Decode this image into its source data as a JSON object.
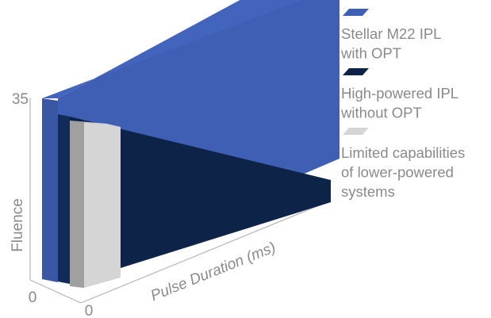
{
  "chart_data": {
    "type": "area",
    "title": "",
    "xlabel": "Pulse Duration (ms)",
    "ylabel": "Fluence",
    "x_ticks": [
      "0"
    ],
    "y_ticks": [
      "0",
      "35"
    ],
    "legend_position": "right",
    "grid": false,
    "series": [
      {
        "name": "Stellar M22 IPL with OPT",
        "color": "#3f5fb4",
        "y_start": 35,
        "y_end": 35,
        "x_extent": 1.0
      },
      {
        "name": "High-powered IPL without OPT",
        "color": "#0e2348",
        "y_start": 33,
        "y_end": 15,
        "x_extent": 1.0
      },
      {
        "name": "Limited capabilities of lower-powered systems",
        "color": "#d5d5d5",
        "y_start": 33,
        "y_end": 33,
        "x_extent": 0.2
      }
    ],
    "legend": [
      {
        "lines": [
          "Stellar M22 IPL",
          "with OPT"
        ],
        "color": "#3f5fb4"
      },
      {
        "lines": [
          "High-powered IPL",
          "without OPT"
        ],
        "color": "#0e2348"
      },
      {
        "lines": [
          "Limited capabilities",
          "of lower-powered",
          "systems"
        ],
        "color": "#d5d5d5"
      }
    ]
  }
}
